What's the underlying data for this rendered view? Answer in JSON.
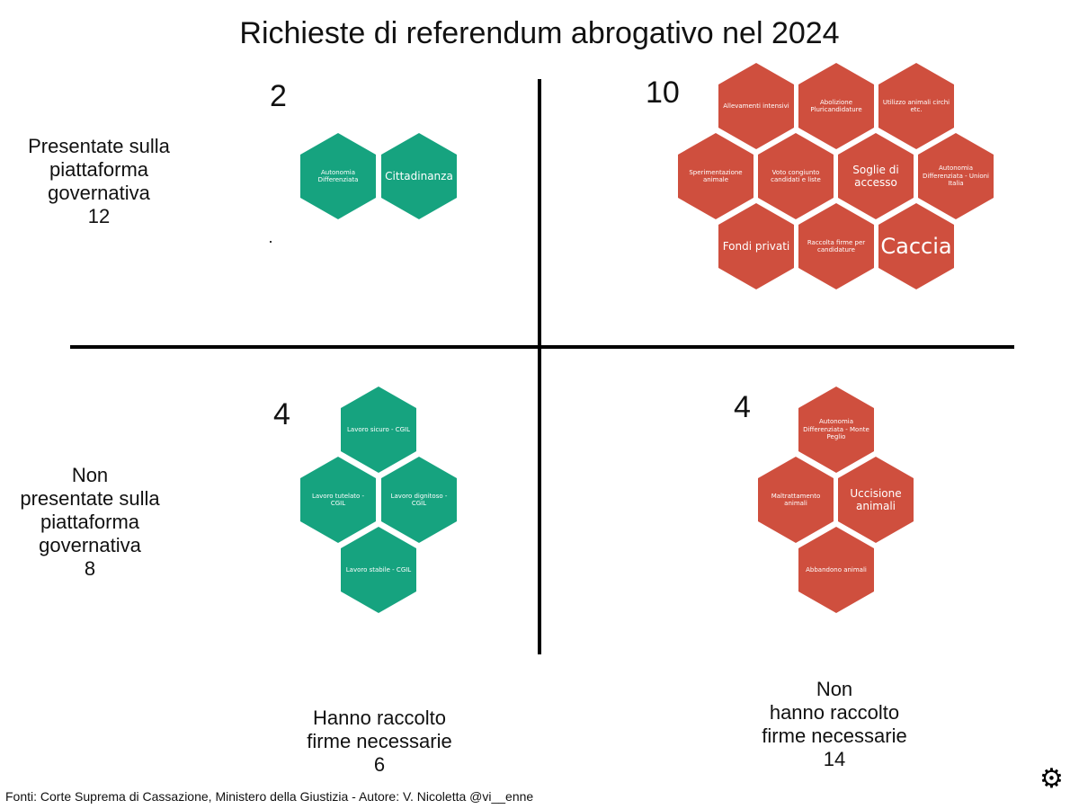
{
  "title": "Richieste di referendum abrogativo nel 2024",
  "rows": {
    "top": [
      "Presentate sulla",
      "piattaforma",
      "governativa",
      "12"
    ],
    "bottom": [
      "Non",
      "presentate sulla",
      "piattaforma",
      "governativa",
      "8"
    ]
  },
  "columns": {
    "left": [
      "Hanno raccolto",
      "firme necessarie",
      "6"
    ],
    "right": [
      "Non",
      "hanno raccolto",
      "firme necessarie",
      "14"
    ]
  },
  "quadrants": {
    "top_left": {
      "count": "2",
      "items": [
        "Autonomia Differenziata",
        "Cittadinanza"
      ]
    },
    "top_right": {
      "count": "10",
      "items": [
        "Allevamenti intensivi",
        "Abolizione Pluricandidature",
        "Utilizzo animali circhi etc.",
        "Sperimentazione animale",
        "Voto congiunto candidati e liste",
        "Soglie di accesso",
        "Autonomia Differenziata - Unioni Italia",
        "Fondi privati",
        "Raccolta firme per candidature",
        "Caccia"
      ]
    },
    "bottom_left": {
      "count": "4",
      "items": [
        "Lavoro sicuro - CGIL",
        "Lavoro tutelato - CGIL",
        "Lavoro dignitoso - CGIL",
        "Lavoro stabile - CGIL"
      ]
    },
    "bottom_right": {
      "count": "4",
      "items": [
        "Autonomia Differenziata - Monte Peglio",
        "Maltrattamento animali",
        "Uccisione animali",
        "Abbandono animali"
      ]
    }
  },
  "colors": {
    "green": "#16a37f",
    "red": "#cf4f3e"
  },
  "footer": "Fonti: Corte Suprema di Cassazione, Ministero della Giustizia - Autore: V. Nicoletta @vi__enne",
  "icons": {
    "settings": "gear-icon"
  }
}
